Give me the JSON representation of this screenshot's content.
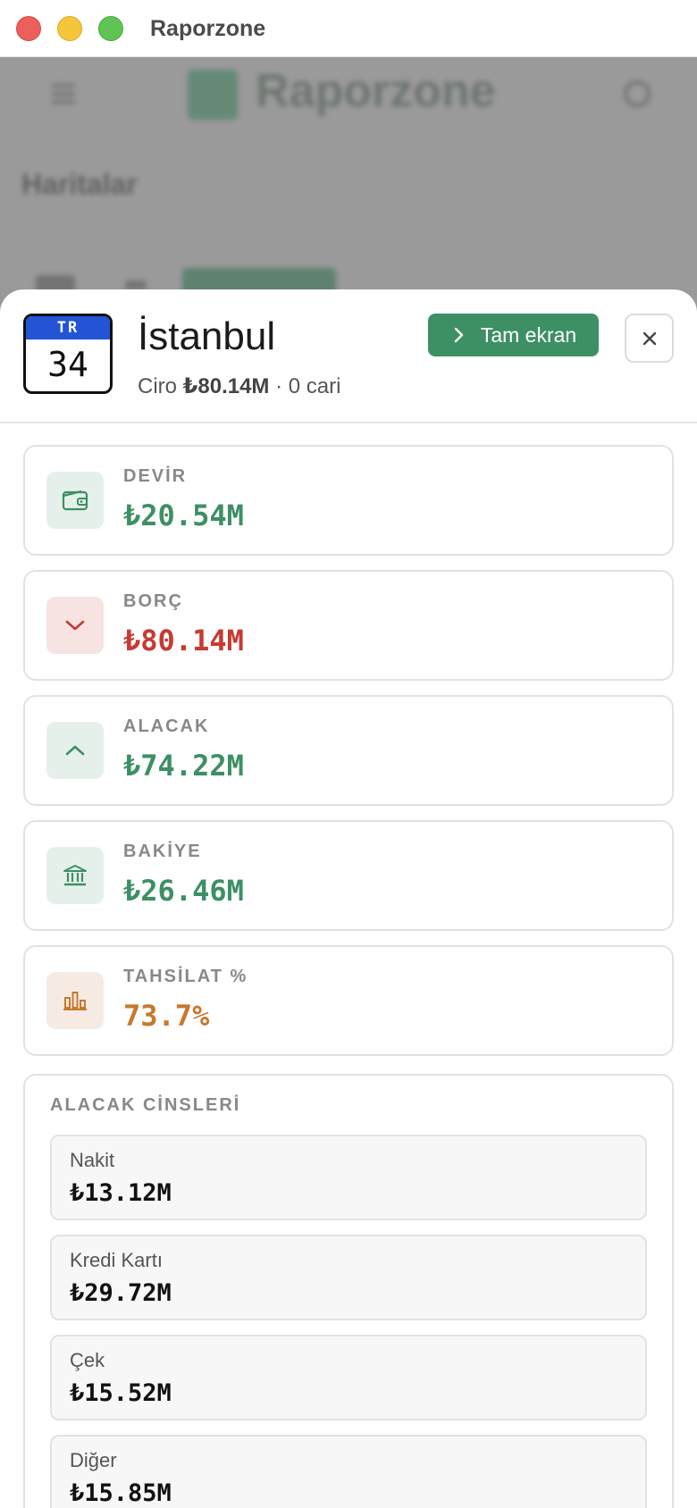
{
  "window": {
    "title": "Raporzone"
  },
  "background": {
    "logo_text": "Raporzone",
    "heading": "Haritalar"
  },
  "sheet": {
    "plate": {
      "country": "TR",
      "number": "34"
    },
    "city": "İstanbul",
    "subtitle": {
      "prefix": "Ciro ",
      "ciro": "₺80.14M",
      "suffix": " · 0 cari"
    },
    "fullscreen_label": "Tam ekran",
    "close_symbol": "×",
    "stats": [
      {
        "label": "DEVİR",
        "value": "₺20.54M",
        "color": "#3d8f64",
        "icon": "wallet-icon",
        "icon_bg": "#e6f0ea"
      },
      {
        "label": "BORÇ",
        "value": "₺80.14M",
        "color": "#c73a32",
        "icon": "chevron-down-icon",
        "icon_bg": "#f6e3e2"
      },
      {
        "label": "ALACAK",
        "value": "₺74.22M",
        "color": "#3d8f64",
        "icon": "chevron-up-icon",
        "icon_bg": "#e6f0ea"
      },
      {
        "label": "BAKİYE",
        "value": "₺26.46M",
        "color": "#3d8f64",
        "icon": "bank-icon",
        "icon_bg": "#e6f0ea"
      },
      {
        "label": "TAHSİLAT %",
        "value": "73.7%",
        "color": "#c8782e",
        "icon": "bar-chart-icon",
        "icon_bg": "#f6ebe3"
      }
    ],
    "types_title": "ALACAK CİNSLERİ",
    "types": [
      {
        "label": "Nakit",
        "value": "₺13.12M"
      },
      {
        "label": "Kredi Kartı",
        "value": "₺29.72M"
      },
      {
        "label": "Çek",
        "value": "₺15.52M"
      },
      {
        "label": "Diğer",
        "value": "₺15.85M"
      }
    ]
  }
}
